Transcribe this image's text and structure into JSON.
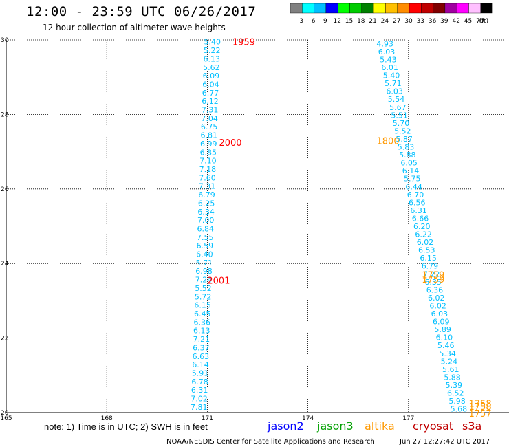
{
  "title": "12:00 - 23:59 UTC 06/26/2017",
  "subtitle": "12 hour collection of altimeter wave heights",
  "note": "note: 1) Time is in UTC; 2) SWH is in feet",
  "credit": "NOAA/NESDIS Center for Satellite Applications and Research",
  "timestamp": "Jun 27 12:27:42 UTC 2017",
  "color_scale": {
    "unit": "(ft)",
    "bins": [
      {
        "label": "3",
        "color": "#808080"
      },
      {
        "label": "6",
        "color": "#00ffff"
      },
      {
        "label": "9",
        "color": "#00bfff"
      },
      {
        "label": "12",
        "color": "#0000ff"
      },
      {
        "label": "15",
        "color": "#00ff00"
      },
      {
        "label": "18",
        "color": "#00cc00"
      },
      {
        "label": "21",
        "color": "#008000"
      },
      {
        "label": "24",
        "color": "#ffff00"
      },
      {
        "label": "27",
        "color": "#ffc000"
      },
      {
        "label": "30",
        "color": "#ff8c00"
      },
      {
        "label": "33",
        "color": "#ff0000"
      },
      {
        "label": "36",
        "color": "#c00000"
      },
      {
        "label": "39",
        "color": "#800000"
      },
      {
        "label": "42",
        "color": "#a000a0"
      },
      {
        "label": "45",
        "color": "#ff00ff"
      },
      {
        "label": "70",
        "color": "#ffc0ff"
      },
      {
        "label": "",
        "color": "#000000"
      }
    ]
  },
  "legend": [
    {
      "name": "jason2",
      "color": "#0000ff"
    },
    {
      "name": "jason3",
      "color": "#00a000"
    },
    {
      "name": "altika",
      "color": "#ff9900"
    },
    {
      "name": "cryosat",
      "color": "#c00000"
    },
    {
      "name": "s3a",
      "color": "#c00000"
    }
  ],
  "chart_data": {
    "type": "scatter",
    "xlim": [
      165,
      180
    ],
    "ylim": [
      20,
      30
    ],
    "x_ticks": [
      "165",
      "168",
      "171",
      "174",
      "177"
    ],
    "y_ticks": [
      "20",
      "22",
      "24",
      "26",
      "28",
      "30"
    ],
    "grid": true,
    "value_color": "#00bfff",
    "tracks": [
      {
        "name": "track-west",
        "start": [
          170.75,
          20.15
        ],
        "end": [
          171.15,
          29.95
        ],
        "values": [
          "7.81",
          "7.02",
          "6.31",
          "6.78",
          "5.91",
          "6.14",
          "6.63",
          "6.37",
          "7.21",
          "6.13",
          "6.36",
          "6.45",
          "6.15",
          "5.72",
          "5.52",
          "7.24",
          "6.98",
          "5.71",
          "6.40",
          "6.59",
          "7.55",
          "6.84",
          "7.00",
          "6.34",
          "6.25",
          "6.79",
          "7.31",
          "7.60",
          "7.18",
          "7.10",
          "6.85",
          "6.99",
          "6.81",
          "6.75",
          "7.04",
          "7.31",
          "6.12",
          "6.77",
          "6.04",
          "6.09",
          "5.62",
          "6.13",
          "5.22",
          "5.40"
        ]
      },
      {
        "name": "track-east",
        "start": [
          178.5,
          20.1
        ],
        "end": [
          176.3,
          29.9
        ],
        "values": [
          "5.68",
          "5.98",
          "6.52",
          "5.39",
          "5.88",
          "5.61",
          "5.24",
          "5.34",
          "5.46",
          "6.10",
          "5.89",
          "6.09",
          "6.03",
          "6.02",
          "6.02",
          "6.36",
          "6.35",
          "7.22",
          "6.79",
          "6.15",
          "6.53",
          "6.02",
          "6.22",
          "6.20",
          "6.66",
          "6.31",
          "6.56",
          "6.70",
          "6.44",
          "5.75",
          "6.14",
          "6.05",
          "5.88",
          "5.83",
          "5.87",
          "5.52",
          "5.70",
          "5.51",
          "5.67",
          "5.54",
          "6.03",
          "5.71",
          "5.40",
          "6.01",
          "5.43",
          "6.03",
          "4.93"
        ]
      }
    ],
    "time_labels": [
      {
        "text": "1959",
        "x": 171.75,
        "y": 29.95,
        "color": "#ff0000"
      },
      {
        "text": "2000",
        "x": 171.35,
        "y": 27.25,
        "color": "#ff0000"
      },
      {
        "text": "2001",
        "x": 171.0,
        "y": 23.55,
        "color": "#ff0000"
      },
      {
        "text": "1800",
        "x": 176.05,
        "y": 27.3,
        "color": "#ff9900"
      },
      {
        "text": "1759",
        "x": 177.4,
        "y": 23.7,
        "color": "#ff9900"
      },
      {
        "text": "1759",
        "x": 177.4,
        "y": 23.58,
        "color": "#ff9900"
      },
      {
        "text": "1758",
        "x": 178.8,
        "y": 20.25,
        "color": "#ff9900"
      },
      {
        "text": "1758",
        "x": 178.8,
        "y": 20.17,
        "color": "#ff9900"
      },
      {
        "text": "1757",
        "x": 178.8,
        "y": 19.98,
        "color": "#ff9900"
      }
    ]
  }
}
